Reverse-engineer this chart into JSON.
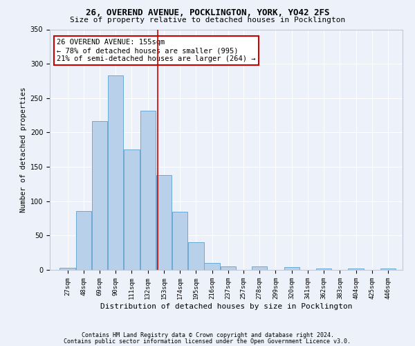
{
  "title1": "26, OVEREND AVENUE, POCKLINGTON, YORK, YO42 2FS",
  "title2": "Size of property relative to detached houses in Pocklington",
  "xlabel": "Distribution of detached houses by size in Pocklington",
  "ylabel": "Number of detached properties",
  "bin_edges": [
    27,
    48,
    69,
    90,
    111,
    132,
    153,
    174,
    195,
    216,
    237,
    257,
    278,
    299,
    320,
    341,
    362,
    383,
    404,
    425,
    446
  ],
  "bar_heights": [
    3,
    86,
    217,
    283,
    175,
    232,
    138,
    85,
    40,
    10,
    5,
    0,
    5,
    0,
    4,
    0,
    2,
    0,
    2,
    0,
    2
  ],
  "bar_color": "#b8d0ea",
  "bar_edge_color": "#6aaad4",
  "background_color": "#edf2fa",
  "grid_color": "#ffffff",
  "vline_x": 155,
  "vline_color": "#cc0000",
  "annotation_line1": "26 OVEREND AVENUE: 155sqm",
  "annotation_line2": "← 78% of detached houses are smaller (995)",
  "annotation_line3": "21% of semi-detached houses are larger (264) →",
  "annotation_box_color": "#ffffff",
  "annotation_box_edge": "#cc0000",
  "footnote1": "Contains HM Land Registry data © Crown copyright and database right 2024.",
  "footnote2": "Contains public sector information licensed under the Open Government Licence v3.0.",
  "ylim": [
    0,
    350
  ],
  "title1_fontsize": 9,
  "title2_fontsize": 8,
  "ylabel_fontsize": 7.5,
  "xlabel_fontsize": 8,
  "tick_fontsize": 6.5,
  "footnote_fontsize": 6
}
